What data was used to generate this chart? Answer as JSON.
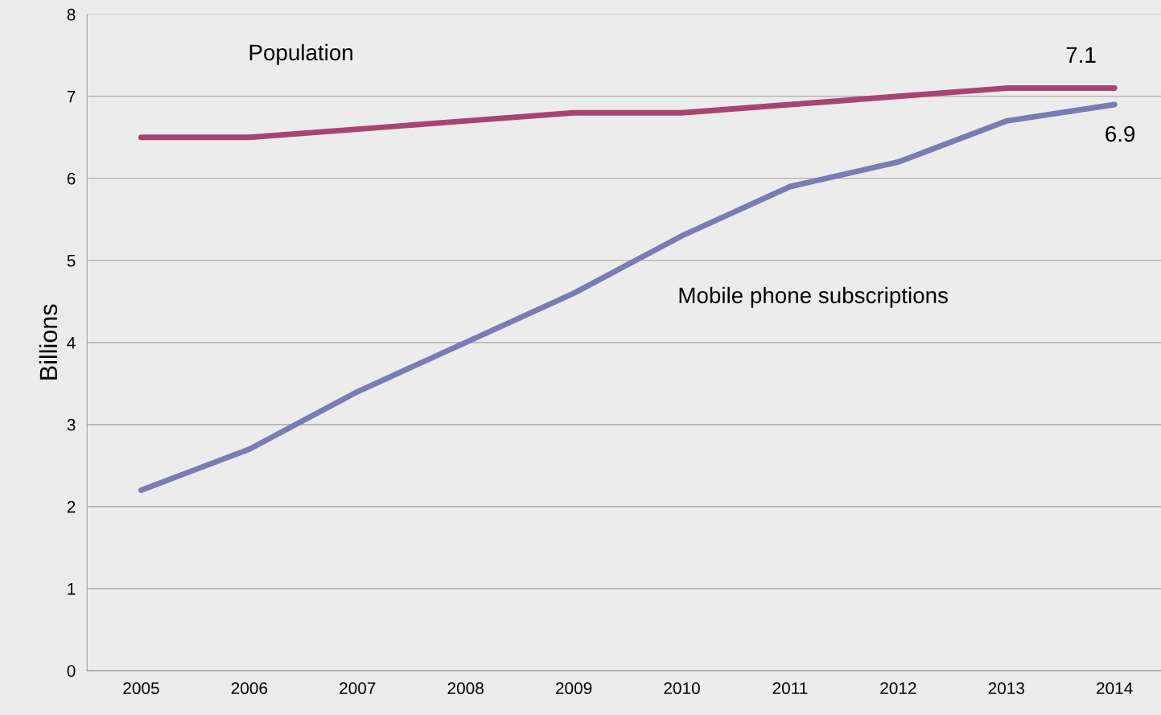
{
  "chart_data": {
    "type": "line",
    "ylabel": "Billions",
    "categories": [
      "2005",
      "2006",
      "2007",
      "2008",
      "2009",
      "2010",
      "2011",
      "2012",
      "2013",
      "2014"
    ],
    "series": [
      {
        "name": "Population",
        "color": "#a8456f",
        "values": [
          6.5,
          6.5,
          6.6,
          6.7,
          6.8,
          6.8,
          6.9,
          7.0,
          7.1,
          7.1
        ],
        "value_labels": [
          null,
          null,
          null,
          null,
          null,
          null,
          null,
          null,
          null,
          "7.1"
        ]
      },
      {
        "name": "Mobile phone subscriptions",
        "color": "#7b7bb5",
        "values": [
          2.2,
          2.7,
          3.4,
          4.0,
          4.6,
          5.3,
          5.9,
          6.2,
          6.7,
          6.9
        ],
        "value_labels": [
          null,
          null,
          null,
          null,
          null,
          null,
          null,
          null,
          null,
          "6.9"
        ]
      }
    ],
    "ylim": [
      0,
      8
    ],
    "yticks": [
      0,
      1,
      2,
      3,
      4,
      5,
      6,
      7,
      8
    ],
    "grid": "y",
    "marker": "none",
    "line_style": "solid",
    "legend": false
  }
}
